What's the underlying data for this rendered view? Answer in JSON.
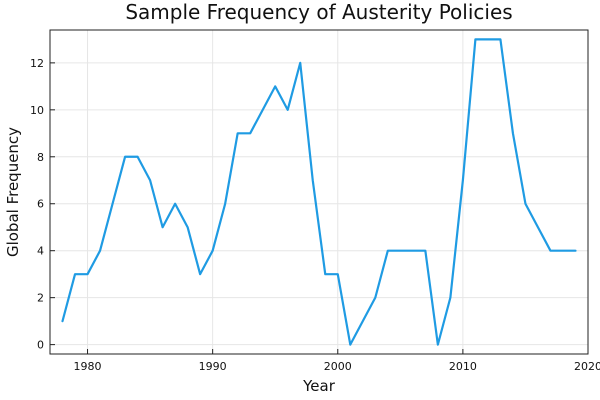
{
  "chart_data": {
    "type": "line",
    "title": "Sample Frequency of Austerity Policies",
    "xlabel": "Year",
    "ylabel": "Global Frequency",
    "xlim": [
      1977,
      2020
    ],
    "ylim": [
      -0.4,
      13.4
    ],
    "xticks": [
      1980,
      1990,
      2000,
      2010,
      2020
    ],
    "yticks": [
      0,
      2,
      4,
      6,
      8,
      10,
      12
    ],
    "grid": true,
    "legend": "none",
    "series": [
      {
        "color": "#1f9be3",
        "x": [
          1978,
          1979,
          1980,
          1981,
          1982,
          1983,
          1984,
          1985,
          1986,
          1987,
          1988,
          1989,
          1990,
          1991,
          1992,
          1993,
          1994,
          1995,
          1996,
          1997,
          1998,
          1999,
          2000,
          2001,
          2002,
          2003,
          2004,
          2005,
          2006,
          2007,
          2008,
          2009,
          2010,
          2011,
          2012,
          2013,
          2014,
          2015,
          2016,
          2017,
          2018,
          2019
        ],
        "y": [
          1,
          3,
          3,
          4,
          6,
          8,
          8,
          7,
          5,
          6,
          5,
          3,
          4,
          6,
          9,
          9,
          10,
          11,
          10,
          12,
          7,
          3,
          3,
          0,
          1,
          2,
          4,
          4,
          4,
          4,
          0,
          2,
          7,
          13,
          13,
          13,
          9,
          6,
          5,
          4,
          4,
          4
        ]
      }
    ]
  }
}
